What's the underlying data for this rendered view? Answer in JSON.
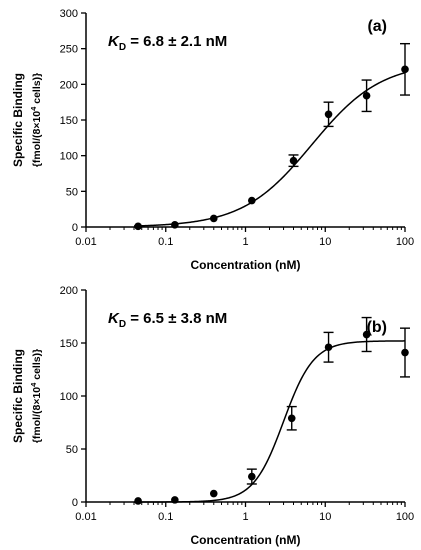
{
  "chart_data": [
    {
      "type": "scatter",
      "panel_label": "(a)",
      "annotation": {
        "symbol": "K",
        "subscript": "D",
        "text": " = 6.8 ± 2.1 nM"
      },
      "xlabel": "Concentration (nM)",
      "ylabel": "Specific Binding",
      "ylabel_line2": "{fmol/(8×10",
      "ylabel_line2_sup": "4",
      "ylabel_line2_end": " cells)}",
      "x_scale": "log",
      "xlim": [
        0.01,
        100
      ],
      "ylim": [
        0,
        300
      ],
      "x_ticks": [
        0.01,
        0.1,
        1,
        10,
        100
      ],
      "x_tick_labels": [
        "0.01",
        "0.1",
        "1",
        "10",
        "100"
      ],
      "y_ticks": [
        0,
        50,
        100,
        150,
        200,
        250,
        300
      ],
      "y_tick_labels": [
        "0",
        "50",
        "100",
        "150",
        "200",
        "250",
        "300"
      ],
      "grid": false,
      "points": [
        {
          "x": 0.045,
          "y": 1,
          "err": 0
        },
        {
          "x": 0.13,
          "y": 3,
          "err": 0
        },
        {
          "x": 0.4,
          "y": 12,
          "err": 0
        },
        {
          "x": 1.2,
          "y": 37,
          "err": 0
        },
        {
          "x": 4,
          "y": 93,
          "err": 8
        },
        {
          "x": 11,
          "y": 158,
          "err": 17
        },
        {
          "x": 33,
          "y": 184,
          "err": 22
        },
        {
          "x": 100,
          "y": 221,
          "err": 36
        }
      ],
      "fit": {
        "bmax": 231,
        "kd": 6.8
      }
    },
    {
      "type": "scatter",
      "panel_label": "(b)",
      "annotation": {
        "symbol": "K",
        "subscript": "D",
        "text": " = 6.5 ± 3.8 nM"
      },
      "xlabel": "Concentration (nM)",
      "ylabel": "Specific Binding",
      "ylabel_line2": "{fmol/(8×10",
      "ylabel_line2_sup": "4",
      "ylabel_line2_end": " cells)}",
      "x_scale": "log",
      "xlim": [
        0.01,
        100
      ],
      "ylim": [
        0,
        200
      ],
      "x_ticks": [
        0.01,
        0.1,
        1,
        10,
        100
      ],
      "x_tick_labels": [
        "0.01",
        "0.1",
        "1",
        "10",
        "100"
      ],
      "y_ticks": [
        0,
        50,
        100,
        150,
        200
      ],
      "y_tick_labels": [
        "0",
        "50",
        "100",
        "150",
        "200"
      ],
      "grid": false,
      "points": [
        {
          "x": 0.045,
          "y": 1,
          "err": 0
        },
        {
          "x": 0.13,
          "y": 2,
          "err": 0
        },
        {
          "x": 0.4,
          "y": 8,
          "err": 0
        },
        {
          "x": 1.2,
          "y": 24,
          "err": 7
        },
        {
          "x": 3.8,
          "y": 79,
          "err": 11
        },
        {
          "x": 11,
          "y": 146,
          "err": 14
        },
        {
          "x": 33,
          "y": 158,
          "err": 16
        },
        {
          "x": 100,
          "y": 141,
          "err": 23
        }
      ],
      "fit": {
        "bmax": 152,
        "ec50": 3.0,
        "hill": 2.3
      }
    }
  ]
}
